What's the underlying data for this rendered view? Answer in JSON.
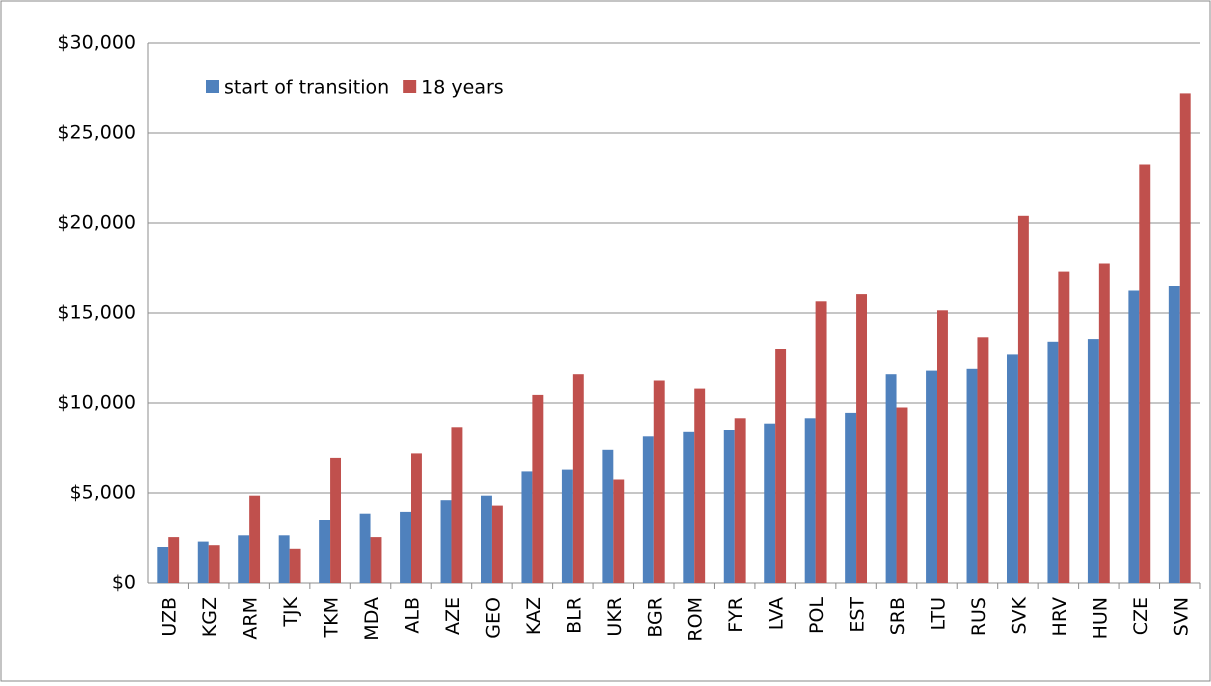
{
  "chart_data": {
    "type": "bar",
    "categories": [
      "UZB",
      "KGZ",
      "ARM",
      "TJK",
      "TKM",
      "MDA",
      "ALB",
      "AZE",
      "GEO",
      "KAZ",
      "BLR",
      "UKR",
      "BGR",
      "ROM",
      "FYR",
      "LVA",
      "POL",
      "EST",
      "SRB",
      "LTU",
      "RUS",
      "SVK",
      "HRV",
      "HUN",
      "CZE",
      "SVN"
    ],
    "series": [
      {
        "name": "start of transition",
        "color": "#4f81bd",
        "values": [
          2000,
          2300,
          2650,
          2650,
          3500,
          3850,
          3950,
          4600,
          4850,
          6200,
          6300,
          7400,
          8150,
          8400,
          8500,
          8850,
          9150,
          9450,
          11600,
          11800,
          11900,
          12700,
          13400,
          13550,
          16250,
          16500
        ]
      },
      {
        "name": "18 years",
        "color": "#c0504d",
        "values": [
          2550,
          2100,
          4850,
          1900,
          6950,
          2550,
          7200,
          8650,
          4300,
          10450,
          11600,
          5750,
          11250,
          10800,
          9150,
          13000,
          15650,
          16050,
          9750,
          15150,
          13650,
          20400,
          17300,
          17750,
          23250,
          27200
        ]
      }
    ],
    "ylim": [
      0,
      30000
    ],
    "yticks": [
      {
        "value": 0,
        "label": "$0"
      },
      {
        "value": 5000,
        "label": "$5,000"
      },
      {
        "value": 10000,
        "label": "$10,000"
      },
      {
        "value": 15000,
        "label": "$15,000"
      },
      {
        "value": 20000,
        "label": "$20,000"
      },
      {
        "value": 25000,
        "label": "$25,000"
      },
      {
        "value": 30000,
        "label": "$30,000"
      }
    ],
    "grid": true,
    "legend": "top-left"
  }
}
